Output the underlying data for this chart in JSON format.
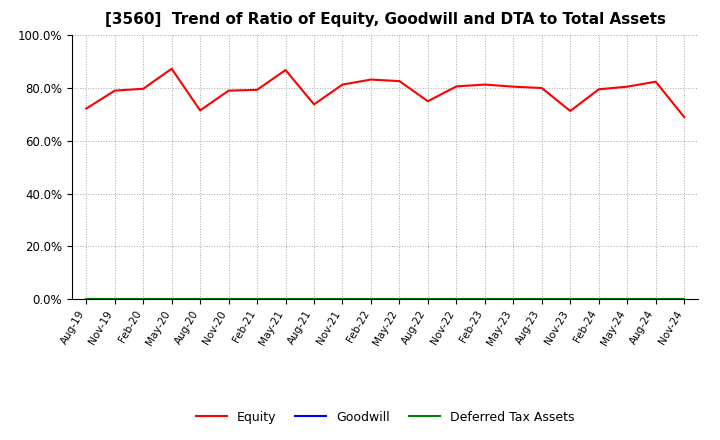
{
  "title": "[3560]  Trend of Ratio of Equity, Goodwill and DTA to Total Assets",
  "x_labels": [
    "Aug-19",
    "Nov-19",
    "Feb-20",
    "May-20",
    "Aug-20",
    "Nov-20",
    "Feb-21",
    "May-21",
    "Aug-21",
    "Nov-21",
    "Feb-22",
    "May-22",
    "Aug-22",
    "Nov-22",
    "Feb-23",
    "May-23",
    "Aug-23",
    "Nov-23",
    "Feb-24",
    "May-24",
    "Aug-24",
    "Nov-24"
  ],
  "equity": [
    0.722,
    0.79,
    0.797,
    0.873,
    0.715,
    0.79,
    0.793,
    0.868,
    0.738,
    0.813,
    0.832,
    0.826,
    0.75,
    0.806,
    0.813,
    0.805,
    0.8,
    0.713,
    0.795,
    0.805,
    0.824,
    0.69
  ],
  "goodwill": [
    0.0,
    0.0,
    0.0,
    0.0,
    0.0,
    0.0,
    0.0,
    0.0,
    0.0,
    0.0,
    0.0,
    0.0,
    0.0,
    0.0,
    0.0,
    0.0,
    0.0,
    0.0,
    0.0,
    0.0,
    0.0,
    0.0
  ],
  "dta": [
    0.0,
    0.0,
    0.0,
    0.0,
    0.0,
    0.0,
    0.0,
    0.0,
    0.0,
    0.0,
    0.0,
    0.0,
    0.0,
    0.0,
    0.0,
    0.0,
    0.0,
    0.0,
    0.0,
    0.0,
    0.0,
    0.0
  ],
  "equity_color": "#FF0000",
  "goodwill_color": "#0000FF",
  "dta_color": "#008000",
  "ylim": [
    0.0,
    1.0
  ],
  "yticks": [
    0.0,
    0.2,
    0.4,
    0.6,
    0.8,
    1.0
  ],
  "ytick_labels": [
    "0.0%",
    "20.0%",
    "40.0%",
    "60.0%",
    "80.0%",
    "100.0%"
  ],
  "background_color": "#FFFFFF",
  "plot_bg_color": "#FFFFFF",
  "grid_color": "#AAAAAA",
  "title_fontsize": 11,
  "legend_labels": [
    "Equity",
    "Goodwill",
    "Deferred Tax Assets"
  ]
}
